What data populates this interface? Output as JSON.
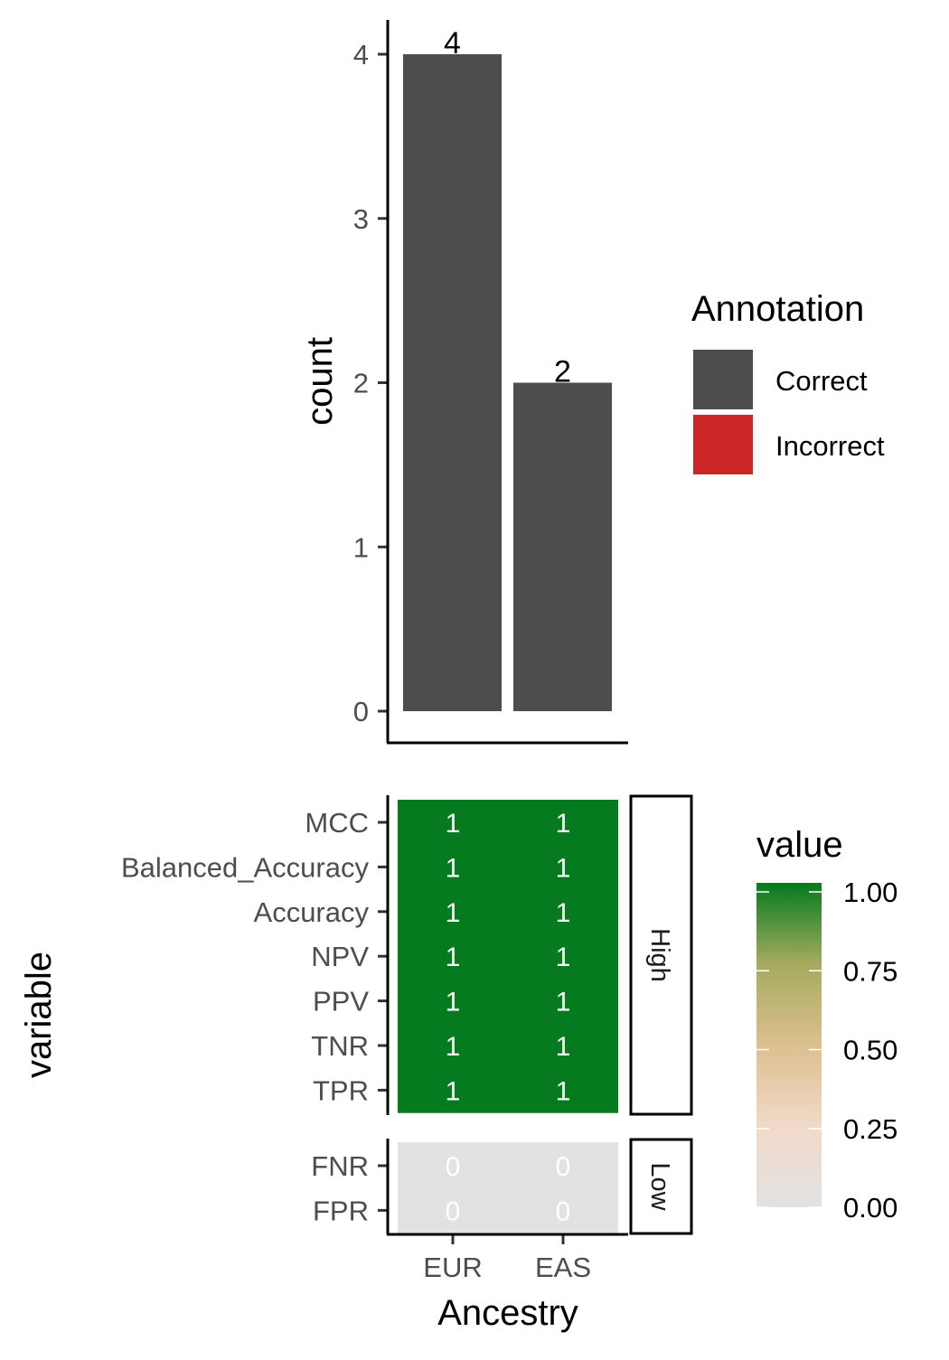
{
  "chart_data": [
    {
      "type": "bar",
      "categories": [
        "EUR",
        "EAS"
      ],
      "series": [
        {
          "name": "Correct",
          "values": [
            4,
            2
          ]
        },
        {
          "name": "Incorrect",
          "values": [
            0,
            0
          ]
        }
      ],
      "data_labels": [
        "4",
        "2"
      ],
      "ylabel": "count",
      "ylim": [
        0,
        4
      ],
      "yticks": [
        0,
        1,
        2,
        3,
        4
      ],
      "ytick_labels": [
        "0",
        "1",
        "2",
        "3",
        "4"
      ],
      "legend": {
        "title": "Annotation",
        "placement": "right",
        "items": [
          {
            "label": "Correct",
            "color": "#4d4d4d"
          },
          {
            "label": "Incorrect",
            "color": "#cd2626"
          }
        ]
      },
      "grid": false
    },
    {
      "type": "heatmap",
      "x": [
        "EUR",
        "EAS"
      ],
      "xlabel": "Ancestry",
      "ylabel": "variable",
      "facets": [
        {
          "label": "High",
          "rows": [
            "MCC",
            "Balanced_Accuracy",
            "Accuracy",
            "NPV",
            "PPV",
            "TNR",
            "TPR"
          ],
          "values": [
            [
              1,
              1
            ],
            [
              1,
              1
            ],
            [
              1,
              1
            ],
            [
              1,
              1
            ],
            [
              1,
              1
            ],
            [
              1,
              1
            ],
            [
              1,
              1
            ]
          ],
          "cell_labels": [
            [
              "1",
              "1"
            ],
            [
              "1",
              "1"
            ],
            [
              "1",
              "1"
            ],
            [
              "1",
              "1"
            ],
            [
              "1",
              "1"
            ],
            [
              "1",
              "1"
            ],
            [
              "1",
              "1"
            ]
          ]
        },
        {
          "label": "Low",
          "rows": [
            "FNR",
            "FPR"
          ],
          "values": [
            [
              0,
              0
            ],
            [
              0,
              0
            ]
          ],
          "cell_labels": [
            [
              "0",
              "0"
            ],
            [
              "0",
              "0"
            ]
          ]
        }
      ],
      "colorbar": {
        "title": "value",
        "range": [
          0,
          1
        ],
        "ticks": [
          0,
          0.25,
          0.5,
          0.75,
          1
        ],
        "tick_labels": [
          "0.00",
          "0.25",
          "0.50",
          "0.75",
          "1.00"
        ],
        "colors": [
          "#e2e2e2",
          "#f1d9c9",
          "#dcc08f",
          "#a5ab5e",
          "#057a1f"
        ]
      }
    }
  ]
}
